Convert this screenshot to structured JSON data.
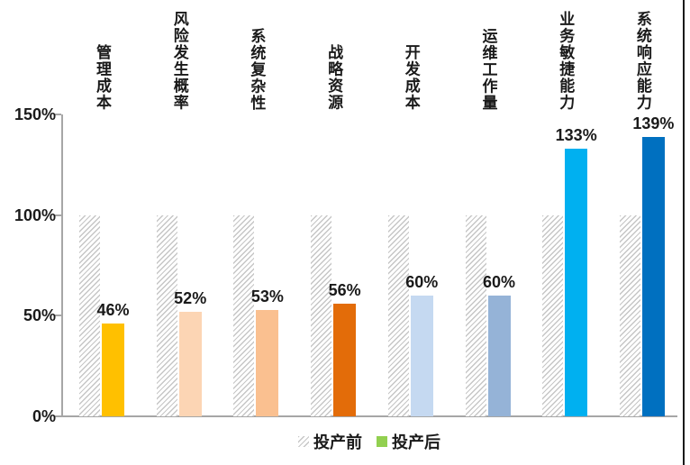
{
  "chart_data": {
    "type": "bar",
    "title": "",
    "categories": [
      "管理成本",
      "风险发生概率",
      "系统复杂性",
      "战略资源",
      "开发成本",
      "运维工作量",
      "业务敏捷能力",
      "系统响应能力"
    ],
    "series": [
      {
        "name": "投产前",
        "values": [
          100,
          100,
          100,
          100,
          100,
          100,
          100,
          100
        ],
        "swatch_type": "hatch"
      },
      {
        "name": "投产后",
        "values": [
          46,
          52,
          53,
          56,
          60,
          60,
          133,
          139
        ],
        "data_labels": [
          "46%",
          "52%",
          "53%",
          "56%",
          "60%",
          "60%",
          "133%",
          "139%"
        ],
        "colors": [
          "#FFC000",
          "#FCD5B4",
          "#FAC090",
          "#E36C09",
          "#C5D9F1",
          "#95B3D7",
          "#00B0F0",
          "#0070C0"
        ]
      }
    ],
    "y_axis": {
      "tick_labels": [
        "150%",
        "100%",
        "50%",
        "0%"
      ],
      "tick_values": [
        150,
        100,
        50,
        0
      ],
      "range": [
        0,
        150
      ]
    },
    "grid": "off",
    "legend": {
      "position": "bottom",
      "items": [
        {
          "label": "投产前",
          "swatch_type": "hatch",
          "swatch_color": ""
        },
        {
          "label": "投产后",
          "swatch_type": "color",
          "swatch_color": "#92D050"
        }
      ]
    },
    "colors_meta": {
      "hatch_line": "#c6c6c6",
      "axis": "#a6a6a6",
      "text": "#1a1a1a",
      "legend_after_swatch": "#92D050"
    }
  }
}
